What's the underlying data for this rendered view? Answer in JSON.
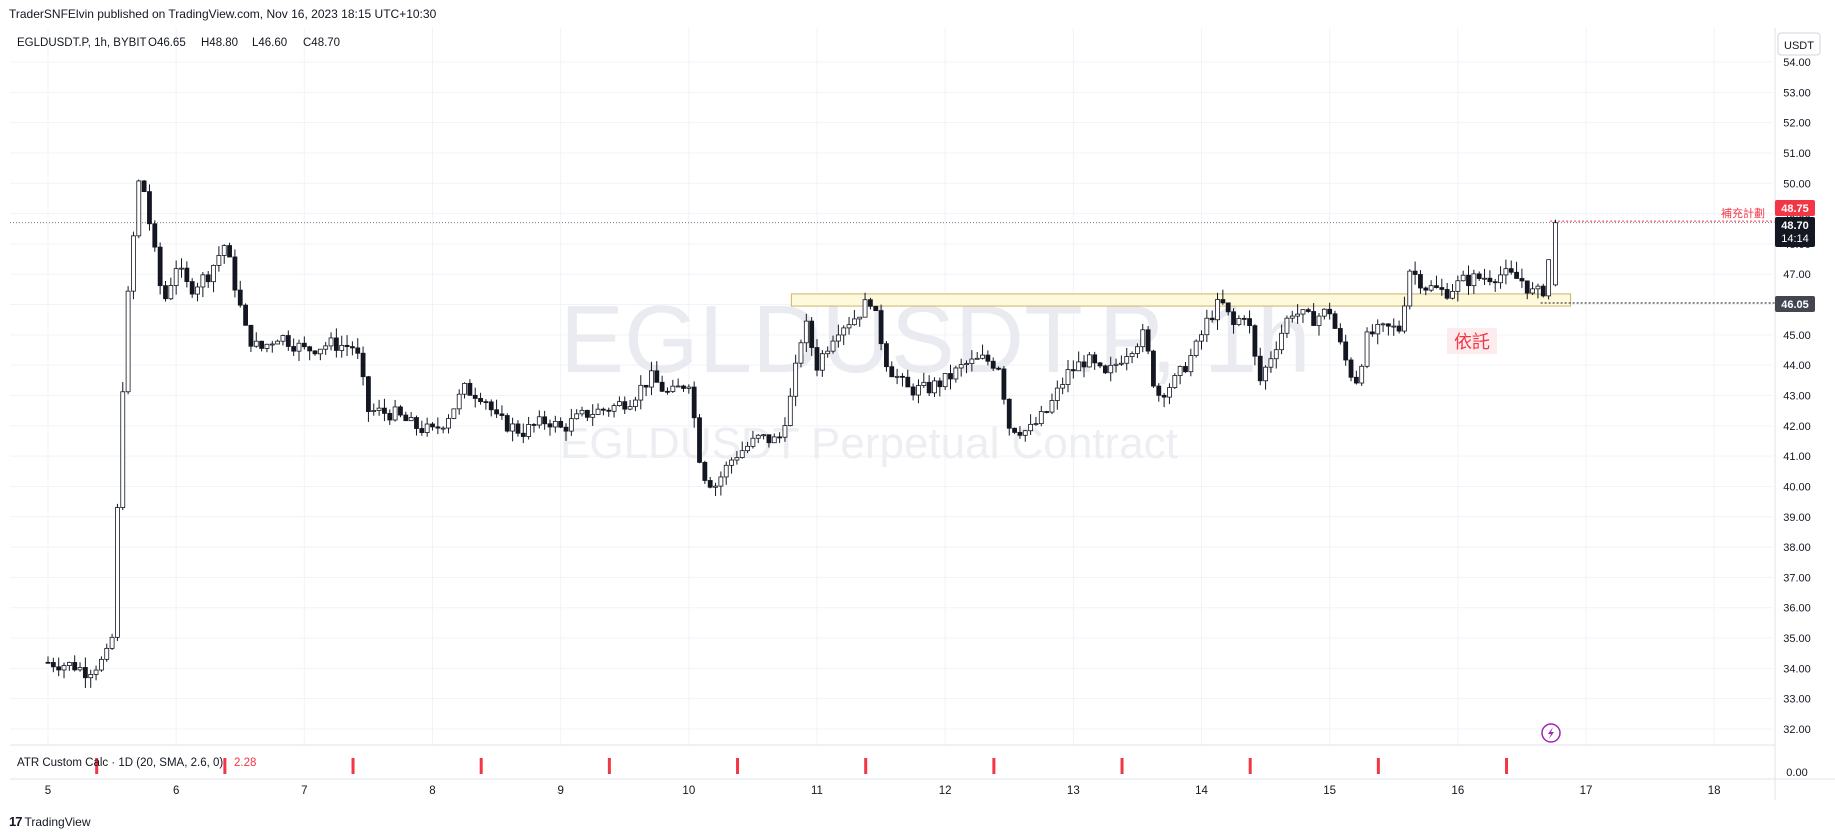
{
  "header": {
    "published": "TraderSNFElvin published on TradingView.com, Nov 16, 2023 18:15 UTC+10:30"
  },
  "legend": {
    "symbol": "EGLDUSDT.P, 1h, BYBIT",
    "open": "O46.65",
    "high": "H48.80",
    "low": "L46.60",
    "close": "C48.70"
  },
  "watermark": {
    "line1": "EGLDUSDT.P, 1h",
    "line2": "EGLDUSDT Perpetual Contract"
  },
  "currency_label": "USDT",
  "price_tags": {
    "alert_value": "48.75",
    "alert_label": "補充計劃",
    "last_price": "48.70",
    "countdown": "14:14",
    "level_value": "46.05",
    "order_label": "依託"
  },
  "indicator": {
    "label": "ATR Custom Calc · 1D (20, SMA, 2.6, 0)",
    "value": "2.28",
    "axis_value": "0.00"
  },
  "footer": {
    "brand": "TradingView"
  },
  "colors": {
    "up": "#089981",
    "down": "#131722",
    "alert": "#f23645",
    "zone_fill": "#fff9db",
    "zone_border": "#c9b46a",
    "grid": "#f0f3fa",
    "lightning": "#9c27b0"
  },
  "chart_data": {
    "type": "candlestick",
    "timeframe": "1h",
    "y_ticks": [
      "54.00",
      "53.00",
      "52.00",
      "51.00",
      "50.00",
      "49.00",
      "48.00",
      "47.00",
      "46.00",
      "45.00",
      "44.00",
      "43.00",
      "42.00",
      "41.00",
      "40.00",
      "39.00",
      "38.00",
      "37.00",
      "36.00",
      "35.00",
      "34.00",
      "33.00",
      "32.00"
    ],
    "y_range": [
      31.8,
      54.4
    ],
    "x_ticks": [
      "5",
      "6",
      "7",
      "8",
      "9",
      "10",
      "11",
      "12",
      "13",
      "14",
      "15",
      "16",
      "17",
      "18"
    ],
    "x_range_days": [
      5,
      18.05
    ],
    "last_close": 48.7,
    "resistance_zone": {
      "from_day": 10.8,
      "to_day": 16.88,
      "low": 45.95,
      "high": 46.35
    },
    "level_line": 46.05,
    "alert_line": 48.75,
    "price_path": [
      [
        5.0,
        34.2
      ],
      [
        5.2,
        34.1
      ],
      [
        5.3,
        33.9
      ],
      [
        5.45,
        34.3
      ],
      [
        5.5,
        35.0
      ],
      [
        5.55,
        40.0
      ],
      [
        5.6,
        45.0
      ],
      [
        5.65,
        47.5
      ],
      [
        5.72,
        50.5
      ],
      [
        5.8,
        48.5
      ],
      [
        5.9,
        46.0
      ],
      [
        6.0,
        47.3
      ],
      [
        6.1,
        46.5
      ],
      [
        6.25,
        47.0
      ],
      [
        6.38,
        48.0
      ],
      [
        6.45,
        46.8
      ],
      [
        6.55,
        45.0
      ],
      [
        6.65,
        44.5
      ],
      [
        6.8,
        45.0
      ],
      [
        7.0,
        44.5
      ],
      [
        7.2,
        44.7
      ],
      [
        7.4,
        44.6
      ],
      [
        7.5,
        42.5
      ],
      [
        7.7,
        42.4
      ],
      [
        7.85,
        42.0
      ],
      [
        8.0,
        41.8
      ],
      [
        8.1,
        42.2
      ],
      [
        8.25,
        43.2
      ],
      [
        8.4,
        43.0
      ],
      [
        8.5,
        42.2
      ],
      [
        8.7,
        41.8
      ],
      [
        8.9,
        42.2
      ],
      [
        9.0,
        41.9
      ],
      [
        9.2,
        42.4
      ],
      [
        9.4,
        42.6
      ],
      [
        9.55,
        42.9
      ],
      [
        9.7,
        43.6
      ],
      [
        9.85,
        43.0
      ],
      [
        10.0,
        43.5
      ],
      [
        10.1,
        40.5
      ],
      [
        10.2,
        40.0
      ],
      [
        10.35,
        41.0
      ],
      [
        10.55,
        41.6
      ],
      [
        10.7,
        41.5
      ],
      [
        10.8,
        43.0
      ],
      [
        10.9,
        45.5
      ],
      [
        11.0,
        44.0
      ],
      [
        11.15,
        45.2
      ],
      [
        11.3,
        45.6
      ],
      [
        11.42,
        46.2
      ],
      [
        11.55,
        44.0
      ],
      [
        11.7,
        43.2
      ],
      [
        11.85,
        43.2
      ],
      [
        12.0,
        43.5
      ],
      [
        12.15,
        44.0
      ],
      [
        12.3,
        44.2
      ],
      [
        12.42,
        44.0
      ],
      [
        12.5,
        42.0
      ],
      [
        12.65,
        41.8
      ],
      [
        12.8,
        42.5
      ],
      [
        12.95,
        43.7
      ],
      [
        13.1,
        44.2
      ],
      [
        13.25,
        43.6
      ],
      [
        13.4,
        44.4
      ],
      [
        13.55,
        45.0
      ],
      [
        13.65,
        43.0
      ],
      [
        13.8,
        43.5
      ],
      [
        13.95,
        44.5
      ],
      [
        14.05,
        45.5
      ],
      [
        14.15,
        46.1
      ],
      [
        14.25,
        45.3
      ],
      [
        14.35,
        45.8
      ],
      [
        14.45,
        43.4
      ],
      [
        14.55,
        44.4
      ],
      [
        14.7,
        45.8
      ],
      [
        14.85,
        45.5
      ],
      [
        15.0,
        45.8
      ],
      [
        15.1,
        44.4
      ],
      [
        15.2,
        43.4
      ],
      [
        15.3,
        45.0
      ],
      [
        15.45,
        45.2
      ],
      [
        15.55,
        45.2
      ],
      [
        15.62,
        47.2
      ],
      [
        15.75,
        46.6
      ],
      [
        15.9,
        46.4
      ],
      [
        16.05,
        46.8
      ],
      [
        16.2,
        46.9
      ],
      [
        16.35,
        47.0
      ],
      [
        16.5,
        46.8
      ],
      [
        16.6,
        46.3
      ],
      [
        16.7,
        46.6
      ],
      [
        16.72,
        48.7
      ]
    ],
    "atr_marks_days": [
      5.38,
      6.38,
      7.38,
      8.38,
      9.38,
      10.38,
      11.38,
      12.38,
      13.38,
      14.38,
      15.38,
      16.38
    ]
  }
}
